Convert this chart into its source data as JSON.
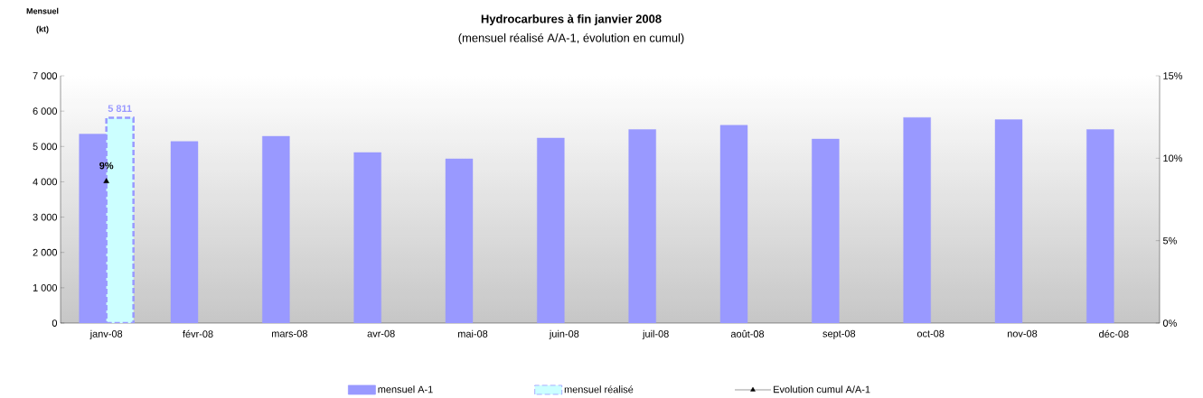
{
  "chart_data": {
    "type": "bar",
    "title": "Hydrocarbures à fin janvier 2008",
    "subtitle": "(mensuel réalisé A/A-1, évolution en cumul)",
    "ylabel": "Mensuel (kt)",
    "categories": [
      "janv-08",
      "févr-08",
      "mars-08",
      "avr-08",
      "mai-08",
      "juin-08",
      "juil-08",
      "août-08",
      "sept-08",
      "oct-08",
      "nov-08",
      "déc-08"
    ],
    "series": [
      {
        "name": "mensuel A-1",
        "color": "#9999ff",
        "values": [
          5350,
          5140,
          5290,
          4830,
          4650,
          5240,
          5480,
          5600,
          5210,
          5820,
          5760,
          5480
        ]
      },
      {
        "name": "mensuel réalisé",
        "color": "#ccffff",
        "line_style": "dashed",
        "values": [
          5811,
          null,
          null,
          null,
          null,
          null,
          null,
          null,
          null,
          null,
          null,
          null
        ],
        "value_labels": [
          "5 811",
          null,
          null,
          null,
          null,
          null,
          null,
          null,
          null,
          null,
          null,
          null
        ]
      },
      {
        "name": "Evolution cumul A/A-1",
        "type": "line",
        "axis": "y2",
        "color": "#000000",
        "marker": "triangle",
        "values": [
          8.6,
          null,
          null,
          null,
          null,
          null,
          null,
          null,
          null,
          null,
          null,
          null
        ],
        "value_labels": [
          "9%",
          null,
          null,
          null,
          null,
          null,
          null,
          null,
          null,
          null,
          null,
          null
        ]
      }
    ],
    "ylim": [
      0,
      7000
    ],
    "yticks": [
      {
        "value": 0,
        "label": "0"
      },
      {
        "value": 1000,
        "label": "1 000"
      },
      {
        "value": 2000,
        "label": "2 000"
      },
      {
        "value": 3000,
        "label": "3 000"
      },
      {
        "value": 4000,
        "label": "4 000"
      },
      {
        "value": 5000,
        "label": "5 000"
      },
      {
        "value": 6000,
        "label": "6 000"
      },
      {
        "value": 7000,
        "label": "7 000"
      }
    ],
    "y2lim": [
      0,
      15
    ],
    "y2ticks": [
      {
        "value": 0,
        "label": "0%"
      },
      {
        "value": 5,
        "label": "5%"
      },
      {
        "value": 10,
        "label": "10%"
      },
      {
        "value": 15,
        "label": "15%"
      }
    ],
    "legend": "bottom",
    "grid": false
  }
}
